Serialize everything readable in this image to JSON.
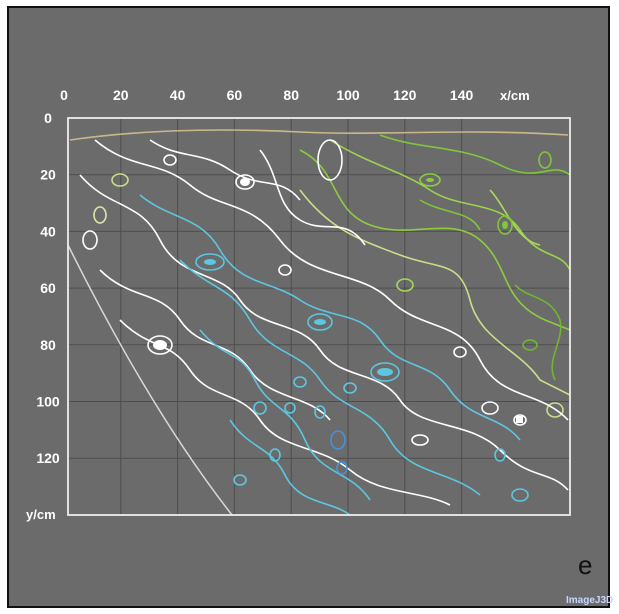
{
  "chart_data": {
    "type": "heatmap",
    "subtype": "contour-map",
    "x_axis": {
      "label": "x/cm",
      "ticks": [
        0,
        20,
        40,
        60,
        80,
        100,
        120,
        140
      ],
      "range": [
        0,
        160
      ],
      "position": "top"
    },
    "y_axis": {
      "label": "y/cm",
      "ticks": [
        0,
        20,
        40,
        60,
        80,
        100,
        120
      ],
      "range": [
        0,
        140
      ],
      "inverted": true
    },
    "grid": true,
    "colors": {
      "background": "#6b6b6b",
      "frame_border": "#111111",
      "plot_border": "#eeeeee",
      "grid": "#4e4e4e",
      "high_level": "#7fc63a",
      "mid_high_level": "#d8e8a8",
      "mid_level": "#ffffff",
      "low_level": "#5ec6e0",
      "lowest_level": "#4a90d9"
    },
    "regions": [
      {
        "level": "high",
        "color": "#7fc63a",
        "location": "top and right"
      },
      {
        "level": "middle",
        "color": "#ffffff",
        "location": "diagonal band"
      },
      {
        "level": "low",
        "color": "#5ec6e0",
        "location": "lower center"
      }
    ]
  },
  "panel_label": "e",
  "watermark": "ImageJ3D"
}
